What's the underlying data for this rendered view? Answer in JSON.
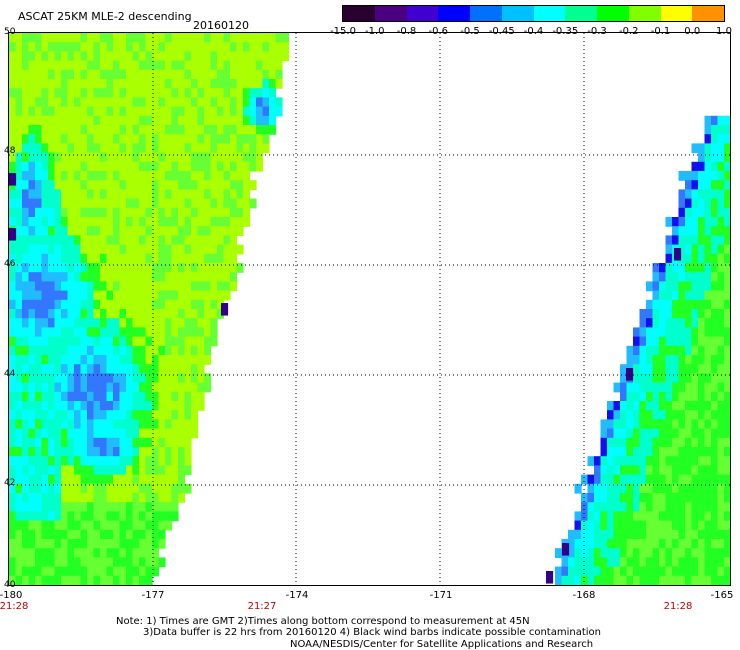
{
  "header": {
    "title": "ASCAT 25KM MLE-2 descending",
    "date": "20160120"
  },
  "colorbar": {
    "labels": [
      "-15.0",
      "-1.0",
      "-0.8",
      "-0.6",
      "-0.5",
      "-0.45",
      "-0.4",
      "-0.35",
      "-0.3",
      "-0.2",
      "-0.1",
      "0.0",
      "1.0"
    ],
    "colors": [
      "#2a0030",
      "#4a0080",
      "#4000d0",
      "#0000ff",
      "#0070ff",
      "#00c0ff",
      "#00ffff",
      "#00ff90",
      "#00ff00",
      "#80ff00",
      "#ffff00",
      "#ff9000",
      "#ff2000"
    ]
  },
  "map": {
    "y_labels": [
      "50",
      "48",
      "46",
      "44",
      "42",
      "40"
    ],
    "x_labels": [
      "-180",
      "-177",
      "-174",
      "-171",
      "-168",
      "-165"
    ],
    "time_labels": [
      "21:28",
      "21:27",
      "21:28"
    ],
    "colors": {
      "yellow_green": "#aaff00",
      "light_green": "#66ff33",
      "green": "#22ff22",
      "aqua": "#00ffcc",
      "cyan": "#00ffff",
      "sky": "#22bbff",
      "blue": "#3377ff",
      "deep_blue": "#1111ee",
      "purple": "#330088"
    }
  },
  "notes": {
    "line1": "Note: 1) Times are GMT 2)Times along bottom correspond to measurement at 45N",
    "line2": "3)Data buffer is 22 hrs from 20160120 4) Black wind barbs indicate possible contamination",
    "line3": "NOAA/NESDIS/Center for Satellite Applications and Research"
  }
}
